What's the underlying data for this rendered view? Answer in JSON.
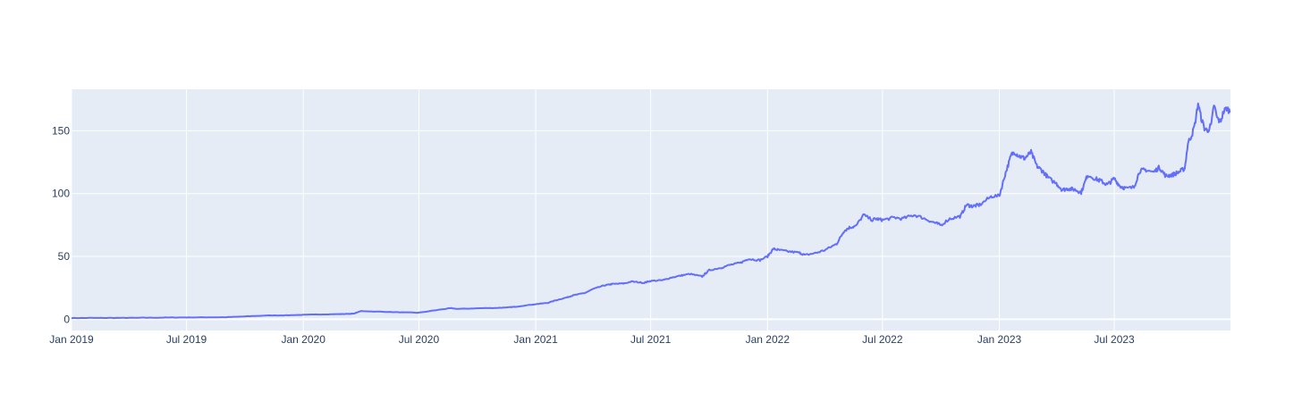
{
  "colors": {
    "plot_bg": "#E5ECF6",
    "grid": "#ffffff",
    "line": "#636efa",
    "tick_text": "#2a3f5f"
  },
  "chart_data": {
    "type": "line",
    "title": "",
    "xlabel": "",
    "ylabel": "",
    "grid": true,
    "legend": "none",
    "xlim": [
      "2019-01-01",
      "2023-12-31"
    ],
    "ylim": [
      -9,
      183
    ],
    "x_ticks": [
      {
        "value": "2019-01-01",
        "label": "Jan 2019"
      },
      {
        "value": "2019-07-01",
        "label": "Jul 2019"
      },
      {
        "value": "2020-01-01",
        "label": "Jan 2020"
      },
      {
        "value": "2020-07-01",
        "label": "Jul 2020"
      },
      {
        "value": "2021-01-01",
        "label": "Jan 2021"
      },
      {
        "value": "2021-07-01",
        "label": "Jul 2021"
      },
      {
        "value": "2022-01-01",
        "label": "Jan 2022"
      },
      {
        "value": "2022-07-01",
        "label": "Jul 2022"
      },
      {
        "value": "2023-01-01",
        "label": "Jan 2023"
      },
      {
        "value": "2023-07-01",
        "label": "Jul 2023"
      }
    ],
    "y_ticks": [
      {
        "value": 0,
        "label": "0"
      },
      {
        "value": 50,
        "label": "50"
      },
      {
        "value": 100,
        "label": "100"
      },
      {
        "value": 150,
        "label": "150"
      }
    ],
    "series": [
      {
        "x": [
          "2019-01-01",
          "2019-02-01",
          "2019-03-01",
          "2019-04-01",
          "2019-05-01",
          "2019-06-01",
          "2019-07-01",
          "2019-08-01",
          "2019-09-01",
          "2019-10-01",
          "2019-11-01",
          "2019-12-01",
          "2020-01-01",
          "2020-02-01",
          "2020-03-01",
          "2020-03-20",
          "2020-04-01",
          "2020-05-01",
          "2020-06-01",
          "2020-07-01",
          "2020-08-01",
          "2020-08-20",
          "2020-09-01",
          "2020-10-01",
          "2020-11-01",
          "2020-11-20",
          "2020-12-01",
          "2021-01-01",
          "2021-01-20",
          "2021-02-01",
          "2021-02-20",
          "2021-03-01",
          "2021-03-20",
          "2021-04-01",
          "2021-04-20",
          "2021-05-01",
          "2021-05-20",
          "2021-06-01",
          "2021-06-20",
          "2021-07-01",
          "2021-07-20",
          "2021-08-01",
          "2021-08-20",
          "2021-09-01",
          "2021-09-20",
          "2021-10-01",
          "2021-10-20",
          "2021-11-01",
          "2021-11-20",
          "2021-12-01",
          "2021-12-20",
          "2022-01-01",
          "2022-01-10",
          "2022-01-20",
          "2022-02-01",
          "2022-02-20",
          "2022-03-01",
          "2022-03-20",
          "2022-04-01",
          "2022-04-20",
          "2022-05-01",
          "2022-05-10",
          "2022-05-20",
          "2022-06-01",
          "2022-06-15",
          "2022-06-20",
          "2022-07-01",
          "2022-07-20",
          "2022-08-01",
          "2022-08-20",
          "2022-09-01",
          "2022-09-20",
          "2022-10-01",
          "2022-10-15",
          "2022-11-01",
          "2022-11-10",
          "2022-11-20",
          "2022-12-01",
          "2022-12-20",
          "2023-01-01",
          "2023-01-10",
          "2023-01-20",
          "2023-01-25",
          "2023-02-01",
          "2023-02-10",
          "2023-02-20",
          "2023-03-01",
          "2023-03-10",
          "2023-03-20",
          "2023-04-01",
          "2023-04-10",
          "2023-04-20",
          "2023-05-01",
          "2023-05-10",
          "2023-05-20",
          "2023-06-01",
          "2023-06-10",
          "2023-06-20",
          "2023-07-01",
          "2023-07-10",
          "2023-07-20",
          "2023-08-01",
          "2023-08-10",
          "2023-08-20",
          "2023-09-01",
          "2023-09-10",
          "2023-09-20",
          "2023-10-01",
          "2023-10-10",
          "2023-10-20",
          "2023-10-25",
          "2023-11-01",
          "2023-11-05",
          "2023-11-10",
          "2023-11-15",
          "2023-11-20",
          "2023-11-25",
          "2023-12-01",
          "2023-12-05",
          "2023-12-10",
          "2023-12-15",
          "2023-12-20",
          "2023-12-25",
          "2023-12-31"
        ],
        "y": [
          0.9,
          1.0,
          1.0,
          1.1,
          1.2,
          1.3,
          1.4,
          1.5,
          1.6,
          2.2,
          2.9,
          3.1,
          3.5,
          3.9,
          4.1,
          4.4,
          6.5,
          6.0,
          5.5,
          5.2,
          7.5,
          8.8,
          8.2,
          8.7,
          9.0,
          9.5,
          10.0,
          12.0,
          13.0,
          15.0,
          17.5,
          19.0,
          21.0,
          24.0,
          27.0,
          28.0,
          28.5,
          30.0,
          29.0,
          30.5,
          31.0,
          33.0,
          35.0,
          36.0,
          34.0,
          39.0,
          41.0,
          43.0,
          45.0,
          48.0,
          47.0,
          50.0,
          56.0,
          55.0,
          54.0,
          53.0,
          51.0,
          53.0,
          55.0,
          60.0,
          70.0,
          73.0,
          74.0,
          83.0,
          79.0,
          80.0,
          79.0,
          81.0,
          80.0,
          83.0,
          81.0,
          77.0,
          75.0,
          80.0,
          82.0,
          91.0,
          90.0,
          91.0,
          98.0,
          98.0,
          115.0,
          131.0,
          133.0,
          130.0,
          128.0,
          133.0,
          122.0,
          118.0,
          112.0,
          108.0,
          103.0,
          104.0,
          103.0,
          101.0,
          115.0,
          112.0,
          110.0,
          107.0,
          112.0,
          106.0,
          104.0,
          105.0,
          118.0,
          119.0,
          117.0,
          121.0,
          114.0,
          115.0,
          117.0,
          120.0,
          140.0,
          148.0,
          155.0,
          172.0,
          160.0,
          152.0,
          150.0,
          155.0,
          171.0,
          160.0,
          157.0,
          165.0,
          168.0,
          165.0
        ]
      }
    ]
  }
}
